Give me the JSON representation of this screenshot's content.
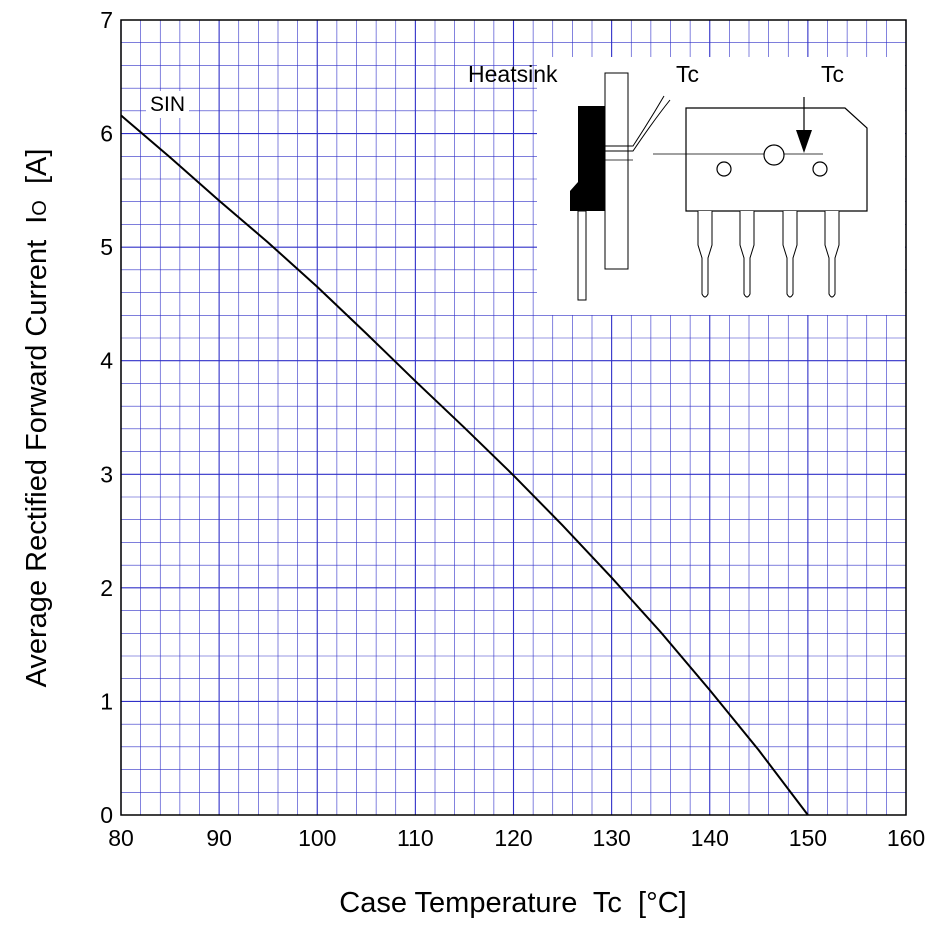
{
  "chart_data": {
    "type": "line",
    "xlabel": "Case Temperature  Tc  [°C]",
    "ylabel_main": "Average Rectified Forward Current  I",
    "ylabel_sub": "O",
    "ylabel_unit": "  [A]",
    "xlim": [
      80,
      160
    ],
    "ylim": [
      0,
      7
    ],
    "xticks": [
      80,
      90,
      100,
      110,
      120,
      130,
      140,
      150,
      160
    ],
    "yticks": [
      0,
      1,
      2,
      3,
      4,
      5,
      6,
      7
    ],
    "grid": true,
    "colors": {
      "major_grid": "#3030c8",
      "minor_grid": "#3030c8",
      "curve": "#000000"
    },
    "series": [
      {
        "name": "SIN",
        "x": [
          80,
          85,
          90,
          95,
          100,
          105,
          110,
          115,
          120,
          125,
          130,
          135,
          140,
          145,
          150
        ],
        "y": [
          6.16,
          5.79,
          5.41,
          5.04,
          4.65,
          4.24,
          3.82,
          3.41,
          2.99,
          2.55,
          2.09,
          1.61,
          1.1,
          0.57,
          0.0
        ]
      }
    ],
    "inset": {
      "heatsink_label": "Heatsink",
      "tc_label_side": "Tc",
      "tc_label_front": "Tc"
    }
  }
}
